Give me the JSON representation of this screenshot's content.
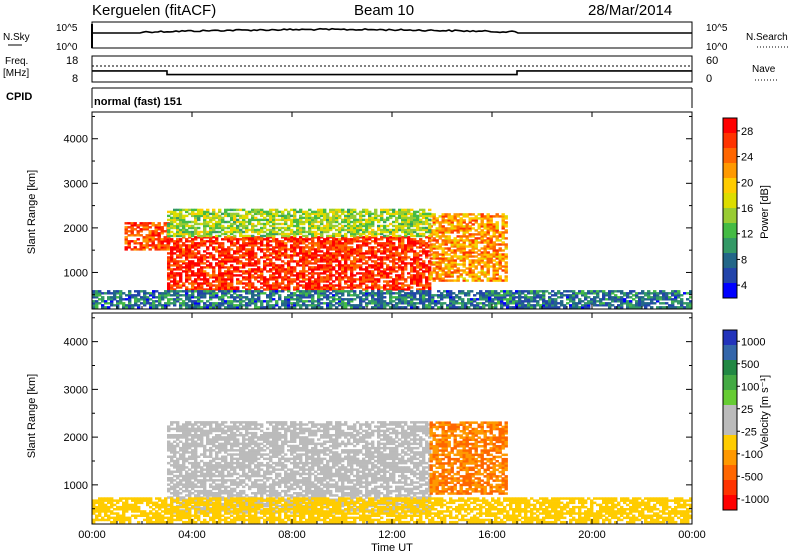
{
  "header": {
    "station": "Kerguelen (fitACF)",
    "beam": "Beam 10",
    "date": "28/Mar/2014"
  },
  "panels": {
    "nsky": {
      "label": "N.Sky",
      "left_ticks": [
        "10^5",
        "10^0"
      ],
      "right_ticks": [
        "10^5",
        "10^0"
      ],
      "right_label": "N.Search"
    },
    "freq": {
      "label_top": "Freq.",
      "label_bottom": "[MHz]",
      "left_ticks": [
        "18",
        "8"
      ],
      "right_ticks": [
        "60",
        "0"
      ],
      "right_label": "Nave"
    },
    "cpid": {
      "label": "CPID",
      "text": "normal (fast) 151"
    }
  },
  "colorbars": {
    "power": {
      "label": "Power [dB]",
      "ticks": [
        "28",
        "24",
        "20",
        "16",
        "12",
        "8",
        "4"
      ],
      "colors": [
        "#ff0000",
        "#ff3300",
        "#ff6600",
        "#ff9900",
        "#ffcc00",
        "#dddd00",
        "#99cc33",
        "#44bb44",
        "#339966",
        "#226688",
        "#2244aa",
        "#0000ff"
      ]
    },
    "velocity": {
      "label": "Velocity [m s⁻¹]",
      "ticks": [
        "1000",
        "500",
        "100",
        "25",
        "-25",
        "-100",
        "-500",
        "-1000"
      ],
      "colors": [
        "#2233bb",
        "#3366aa",
        "#228844",
        "#44aa44",
        "#66cc33",
        "#bbbbbb",
        "#bbbbbb",
        "#ffcc00",
        "#ff9900",
        "#ff6600",
        "#ff3300",
        "#ff0000"
      ]
    }
  },
  "chart_data": {
    "type": "heatmap",
    "xlabel": "Time UT",
    "x_ticks": [
      "00:00",
      "04:00",
      "08:00",
      "12:00",
      "16:00",
      "20:00",
      "00:00"
    ],
    "xlim_hours": [
      0,
      24
    ],
    "ylabel": "Slant Range [km]",
    "y_ticks": [
      1000,
      2000,
      3000,
      4000
    ],
    "ylim_km": [
      180,
      4600
    ],
    "freq_mhz_segments": [
      {
        "start_hour": 0,
        "end_hour": 3,
        "value": 12
      },
      {
        "start_hour": 3,
        "end_hour": 17,
        "value": 10
      },
      {
        "start_hour": 17,
        "end_hour": 24,
        "value": 12
      }
    ],
    "power_regions": [
      {
        "t0": 3.0,
        "t1": 13.5,
        "r0": 600,
        "r1": 1800,
        "power_db": 28
      },
      {
        "t0": 1.3,
        "t1": 3.0,
        "r0": 1500,
        "r1": 2100,
        "power_db": 26
      },
      {
        "t0": 13.5,
        "t1": 16.5,
        "r0": 800,
        "r1": 2300,
        "power_db": 22
      },
      {
        "t0": 3.0,
        "t1": 13.5,
        "r0": 1800,
        "r1": 2400,
        "power_db": 14
      },
      {
        "t0": 0.0,
        "t1": 24.0,
        "r0": 200,
        "r1": 600,
        "power_db": 6
      }
    ],
    "velocity_regions": [
      {
        "t0": 3.0,
        "t1": 13.5,
        "r0": 400,
        "r1": 2300,
        "velocity_ms": 0
      },
      {
        "t0": 13.5,
        "t1": 16.5,
        "r0": 800,
        "r1": 2300,
        "velocity_ms": -300
      },
      {
        "t0": 0.0,
        "t1": 24.0,
        "r0": 200,
        "r1": 700,
        "velocity_ms": -50
      }
    ]
  }
}
